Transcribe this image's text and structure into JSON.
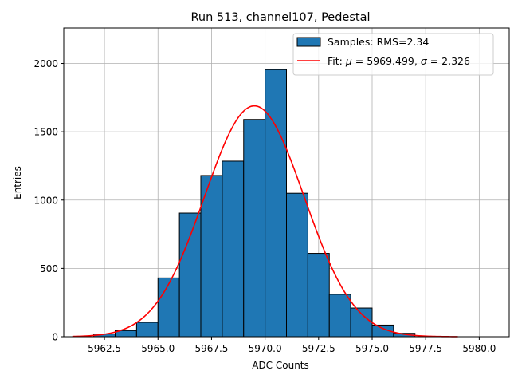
{
  "chart_data": {
    "type": "bar",
    "title": "Run 513, channel107, Pedestal",
    "xlabel": "ADC Counts",
    "ylabel": "Entries",
    "xlim": [
      5960.6,
      5981.4
    ],
    "ylim": [
      0,
      2260
    ],
    "grid": true,
    "x_ticks": [
      5962.5,
      5965.0,
      5967.5,
      5970.0,
      5972.5,
      5975.0,
      5977.5,
      5980.0
    ],
    "x_tick_labels": [
      "5962.5",
      "5965.0",
      "5967.5",
      "5970.0",
      "5972.5",
      "5975.0",
      "5977.5",
      "5980.0"
    ],
    "y_ticks": [
      0,
      500,
      1000,
      1500,
      2000
    ],
    "y_tick_labels": [
      "0",
      "500",
      "1000",
      "1500",
      "2000"
    ],
    "bin_width": 1,
    "bins": [
      {
        "x": 5962.5,
        "value": 20
      },
      {
        "x": 5963.5,
        "value": 45
      },
      {
        "x": 5964.5,
        "value": 105
      },
      {
        "x": 5965.5,
        "value": 430
      },
      {
        "x": 5966.5,
        "value": 905
      },
      {
        "x": 5967.5,
        "value": 1180
      },
      {
        "x": 5968.5,
        "value": 1285
      },
      {
        "x": 5969.5,
        "value": 1590
      },
      {
        "x": 5970.5,
        "value": 1955
      },
      {
        "x": 5971.5,
        "value": 1050
      },
      {
        "x": 5972.5,
        "value": 610
      },
      {
        "x": 5973.5,
        "value": 310
      },
      {
        "x": 5974.5,
        "value": 210
      },
      {
        "x": 5975.5,
        "value": 85
      },
      {
        "x": 5976.5,
        "value": 25
      }
    ],
    "fit": {
      "mu": 5969.499,
      "sigma": 2.326,
      "amplitude": 1690,
      "x_range": [
        5961.0,
        5979.0
      ]
    },
    "legend_position": "top-right",
    "legend": [
      {
        "label": "Samples: RMS=2.34"
      },
      {
        "label_prefix": "Fit: ",
        "mu_symbol": "μ",
        "mu_text": " = 5969.499, ",
        "sigma_symbol": "σ",
        "sigma_text": " = 2.326"
      }
    ],
    "colors": {
      "bar_fill": "#1f77b4",
      "bar_edge": "#000000",
      "fit_line": "#ff0000",
      "grid": "#b0b0b0"
    }
  }
}
